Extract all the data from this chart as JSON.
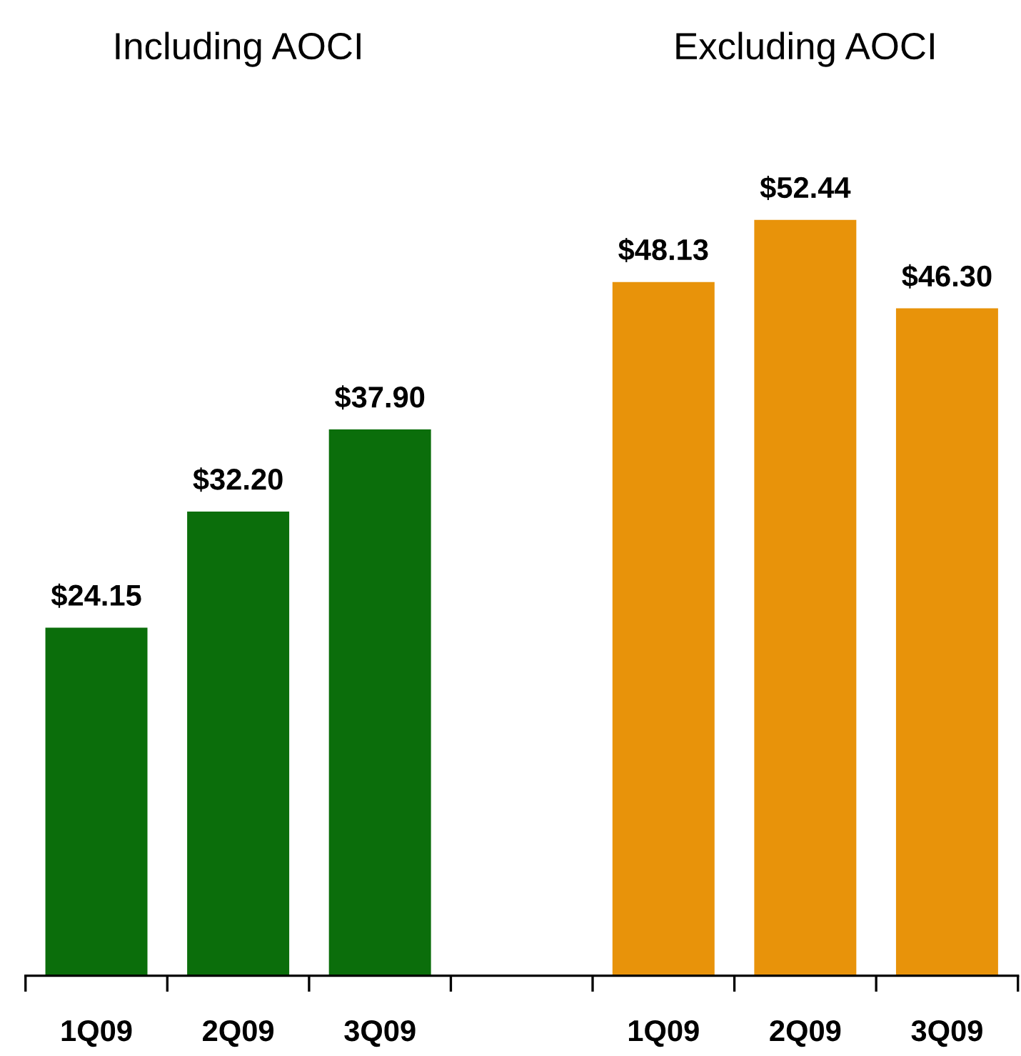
{
  "chart_data": {
    "type": "bar",
    "categories": [
      "1Q09",
      "2Q09",
      "3Q09",
      null,
      "1Q09",
      "2Q09",
      "3Q09"
    ],
    "series": [
      {
        "color": "#0b6e0b",
        "values": [
          24.15,
          32.2,
          37.9,
          null,
          null,
          null,
          null
        ],
        "value_labels": [
          "$24.15",
          "$32.20",
          "$37.90",
          null,
          null,
          null,
          null
        ]
      },
      {
        "color": "#e8930a",
        "values": [
          null,
          null,
          null,
          null,
          48.13,
          52.44,
          46.3
        ],
        "value_labels": [
          null,
          null,
          null,
          null,
          "$48.13",
          "$52.44",
          "$46.30"
        ]
      }
    ],
    "annotations": [
      "Including AOCI",
      "Excluding AOCI"
    ],
    "grid": false,
    "legend": false
  }
}
